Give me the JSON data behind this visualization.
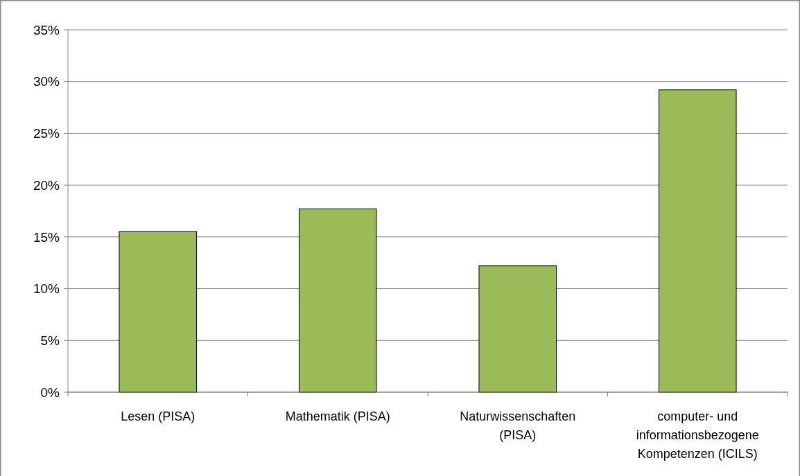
{
  "chart_data": {
    "type": "bar",
    "categories": [
      "Lesen (PISA)",
      "Mathematik (PISA)",
      "Naturwissenschaften (PISA)",
      "computer- und informationsbezogene Kompetenzen (ICILS)"
    ],
    "values": [
      15.5,
      17.7,
      12.2,
      29.2
    ],
    "color": "#9bbb59",
    "ylim": [
      0,
      35
    ],
    "yticks": [
      {
        "value": 0,
        "label": "0%"
      },
      {
        "value": 5,
        "label": "5%"
      },
      {
        "value": 10,
        "label": "10%"
      },
      {
        "value": 15,
        "label": "15%"
      },
      {
        "value": 20,
        "label": "20%"
      },
      {
        "value": 25,
        "label": "25%"
      },
      {
        "value": 30,
        "label": "30%"
      },
      {
        "value": 35,
        "label": "35%"
      }
    ],
    "grid": "y"
  }
}
